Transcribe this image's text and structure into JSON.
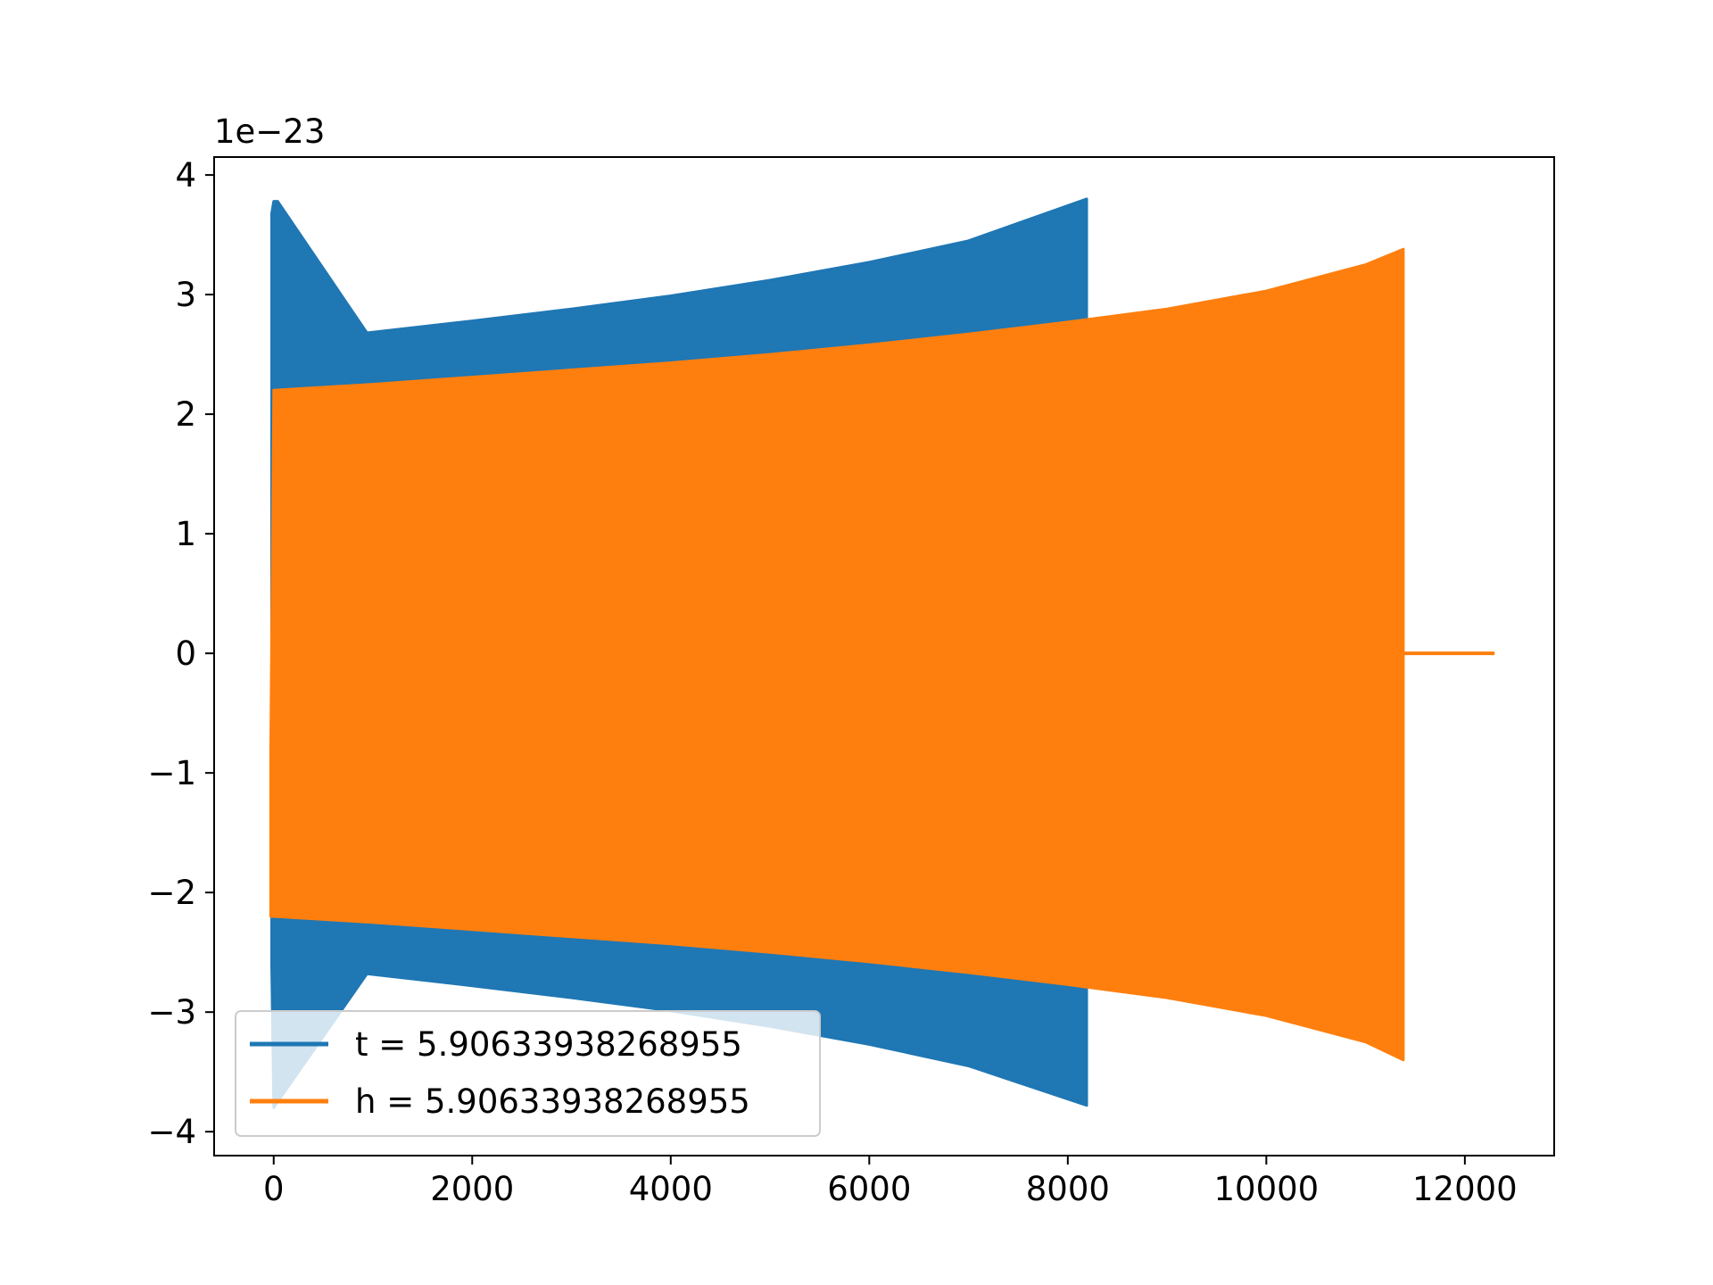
{
  "chart_data": {
    "type": "line",
    "title": "",
    "xlabel": "",
    "ylabel": "",
    "y_multiplier_label": "1e−23",
    "xlim": [
      -600,
      12900
    ],
    "ylim": [
      -4.2,
      4.15
    ],
    "x_ticks": [
      0,
      2000,
      4000,
      6000,
      8000,
      10000,
      12000
    ],
    "x_tick_labels": [
      "0",
      "2000",
      "4000",
      "6000",
      "8000",
      "10000",
      "12000"
    ],
    "y_ticks": [
      -4,
      -3,
      -2,
      -1,
      0,
      1,
      2,
      3,
      4
    ],
    "y_tick_labels": [
      "−4",
      "−3",
      "−2",
      "−1",
      "0",
      "1",
      "2",
      "3",
      "4"
    ],
    "grid": false,
    "legend_position": "lower-left",
    "series": [
      {
        "name": "t = 5.90633938268955",
        "color": "#1f77b4",
        "envelope": [
          {
            "x": -20,
            "upper": 3.68,
            "lower": -2.6
          },
          {
            "x": 0,
            "upper": 3.78,
            "lower": -3.8
          },
          {
            "x": 40,
            "upper": 3.78,
            "lower": -3.75
          },
          {
            "x": 940,
            "upper": 2.68,
            "lower": -2.68
          },
          {
            "x": 2000,
            "upper": 2.78,
            "lower": -2.78
          },
          {
            "x": 3000,
            "upper": 2.88,
            "lower": -2.88
          },
          {
            "x": 4000,
            "upper": 2.99,
            "lower": -2.99
          },
          {
            "x": 5000,
            "upper": 3.12,
            "lower": -3.12
          },
          {
            "x": 6000,
            "upper": 3.27,
            "lower": -3.27
          },
          {
            "x": 7000,
            "upper": 3.45,
            "lower": -3.45
          },
          {
            "x": 8190,
            "upper": 3.8,
            "lower": -3.78
          }
        ]
      },
      {
        "name": "h = 5.90633938268955",
        "color": "#ff7f0e",
        "envelope": [
          {
            "x": -30,
            "upper": -0.85,
            "lower": -2.2
          },
          {
            "x": 0,
            "upper": 2.2,
            "lower": -2.2
          },
          {
            "x": 1000,
            "upper": 2.25,
            "lower": -2.25
          },
          {
            "x": 2000,
            "upper": 2.31,
            "lower": -2.31
          },
          {
            "x": 3000,
            "upper": 2.37,
            "lower": -2.37
          },
          {
            "x": 4000,
            "upper": 2.43,
            "lower": -2.43
          },
          {
            "x": 5000,
            "upper": 2.5,
            "lower": -2.5
          },
          {
            "x": 6000,
            "upper": 2.58,
            "lower": -2.58
          },
          {
            "x": 7000,
            "upper": 2.67,
            "lower": -2.67
          },
          {
            "x": 8000,
            "upper": 2.77,
            "lower": -2.77
          },
          {
            "x": 9000,
            "upper": 2.88,
            "lower": -2.88
          },
          {
            "x": 10000,
            "upper": 3.03,
            "lower": -3.03
          },
          {
            "x": 11000,
            "upper": 3.25,
            "lower": -3.25
          },
          {
            "x": 11380,
            "upper": 3.38,
            "lower": -3.4
          }
        ],
        "tail": [
          {
            "x": 11380,
            "y": 0
          },
          {
            "x": 12300,
            "y": 0
          }
        ]
      }
    ]
  }
}
